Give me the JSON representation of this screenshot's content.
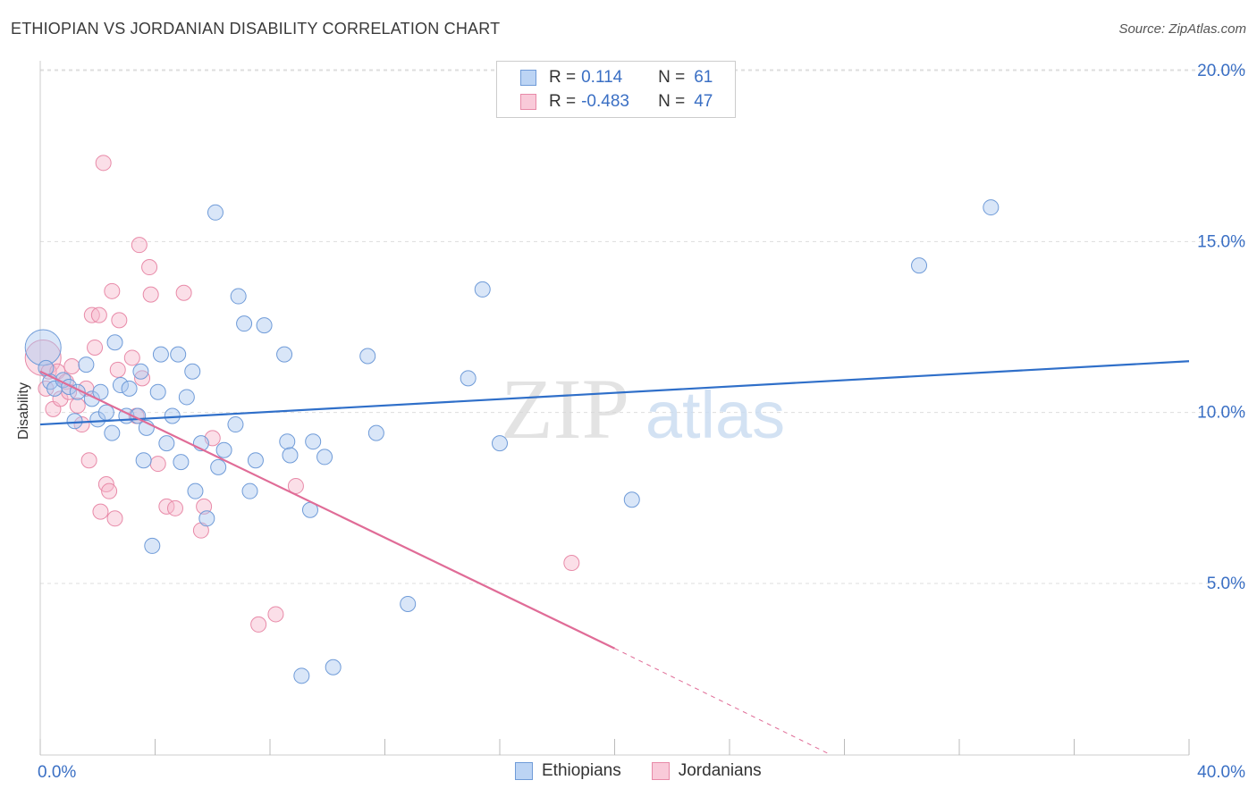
{
  "title": "ETHIOPIAN VS JORDANIAN DISABILITY CORRELATION CHART",
  "source": "Source: ZipAtlas.com",
  "watermark": {
    "part1": "ZIP",
    "part2": "atlas"
  },
  "legend": {
    "r_label": "R =",
    "n_label": "N =",
    "rows": [
      {
        "name": "Ethiopians",
        "r": "0.114",
        "n": "61"
      },
      {
        "name": "Jordanians",
        "r": "-0.483",
        "n": "47"
      }
    ]
  },
  "colors": {
    "ethiopians_fill": "#aac8f0",
    "ethiopians_stroke": "#6f9bd8",
    "ethiopians_line": "#2f6fc9",
    "jordanians_fill": "#f6b8cc",
    "jordanians_stroke": "#e88aa8",
    "jordanians_line": "#e06c97",
    "axis_text": "#3a6fc4"
  },
  "chart_data": {
    "type": "scatter",
    "title": "ETHIOPIAN VS JORDANIAN DISABILITY CORRELATION CHART",
    "xlabel": "",
    "ylabel": "Disability",
    "xlim": [
      0,
      40
    ],
    "ylim": [
      0,
      20.6
    ],
    "x_tick_labels": [
      "0.0%",
      "40.0%"
    ],
    "y_ticks": [
      5,
      10,
      15,
      20
    ],
    "y_tick_labels": [
      "5.0%",
      "10.0%",
      "15.0%",
      "20.0%"
    ],
    "series": [
      {
        "name": "Ethiopians",
        "trend": {
          "x": [
            0,
            40
          ],
          "y": [
            9.65,
            11.5
          ]
        },
        "points": [
          {
            "x": 0.1,
            "y": 11.9,
            "big": true
          },
          {
            "x": 0.2,
            "y": 11.3
          },
          {
            "x": 0.35,
            "y": 10.9
          },
          {
            "x": 0.5,
            "y": 10.7
          },
          {
            "x": 0.8,
            "y": 10.95
          },
          {
            "x": 1.0,
            "y": 10.75
          },
          {
            "x": 1.3,
            "y": 10.6
          },
          {
            "x": 1.6,
            "y": 11.4
          },
          {
            "x": 1.2,
            "y": 9.75
          },
          {
            "x": 1.8,
            "y": 10.4
          },
          {
            "x": 2.0,
            "y": 9.8
          },
          {
            "x": 2.1,
            "y": 10.6
          },
          {
            "x": 2.3,
            "y": 10.0
          },
          {
            "x": 2.5,
            "y": 9.4
          },
          {
            "x": 2.6,
            "y": 12.05
          },
          {
            "x": 2.8,
            "y": 10.8
          },
          {
            "x": 3.0,
            "y": 9.9
          },
          {
            "x": 3.1,
            "y": 10.7
          },
          {
            "x": 3.4,
            "y": 9.9
          },
          {
            "x": 3.5,
            "y": 11.2
          },
          {
            "x": 3.6,
            "y": 8.6
          },
          {
            "x": 3.7,
            "y": 9.55
          },
          {
            "x": 3.9,
            "y": 6.1
          },
          {
            "x": 4.1,
            "y": 10.6
          },
          {
            "x": 4.2,
            "y": 11.7
          },
          {
            "x": 4.4,
            "y": 9.1
          },
          {
            "x": 4.6,
            "y": 9.9
          },
          {
            "x": 4.8,
            "y": 11.7
          },
          {
            "x": 4.9,
            "y": 8.55
          },
          {
            "x": 5.1,
            "y": 10.45
          },
          {
            "x": 5.3,
            "y": 11.2
          },
          {
            "x": 5.4,
            "y": 7.7
          },
          {
            "x": 5.6,
            "y": 9.1
          },
          {
            "x": 5.8,
            "y": 6.9
          },
          {
            "x": 6.1,
            "y": 15.85
          },
          {
            "x": 6.2,
            "y": 8.4
          },
          {
            "x": 6.4,
            "y": 8.9
          },
          {
            "x": 6.8,
            "y": 9.65
          },
          {
            "x": 6.9,
            "y": 13.4
          },
          {
            "x": 7.1,
            "y": 12.6
          },
          {
            "x": 7.3,
            "y": 7.7
          },
          {
            "x": 7.5,
            "y": 8.6
          },
          {
            "x": 7.8,
            "y": 12.55
          },
          {
            "x": 8.5,
            "y": 11.7
          },
          {
            "x": 8.6,
            "y": 9.15
          },
          {
            "x": 8.7,
            "y": 8.75
          },
          {
            "x": 9.1,
            "y": 2.3
          },
          {
            "x": 9.4,
            "y": 7.15
          },
          {
            "x": 9.5,
            "y": 9.15
          },
          {
            "x": 9.9,
            "y": 8.7
          },
          {
            "x": 10.2,
            "y": 2.55
          },
          {
            "x": 11.4,
            "y": 11.65
          },
          {
            "x": 11.7,
            "y": 9.4
          },
          {
            "x": 12.8,
            "y": 4.4
          },
          {
            "x": 14.9,
            "y": 11.0
          },
          {
            "x": 15.4,
            "y": 13.6
          },
          {
            "x": 16.0,
            "y": 9.1
          },
          {
            "x": 20.6,
            "y": 7.45
          },
          {
            "x": 30.6,
            "y": 14.3
          },
          {
            "x": 33.1,
            "y": 16.0
          }
        ]
      },
      {
        "name": "Jordanians",
        "trend": {
          "x": [
            0,
            20
          ],
          "y": [
            11.2,
            3.1
          ]
        },
        "trend_dashed": {
          "x": [
            20,
            27.5
          ],
          "y": [
            3.1,
            0.0
          ]
        },
        "points": [
          {
            "x": 0.1,
            "y": 11.6,
            "big": true
          },
          {
            "x": 0.2,
            "y": 10.7
          },
          {
            "x": 0.3,
            "y": 11.2
          },
          {
            "x": 0.45,
            "y": 10.1
          },
          {
            "x": 0.6,
            "y": 11.2
          },
          {
            "x": 0.7,
            "y": 10.4
          },
          {
            "x": 0.9,
            "y": 10.9
          },
          {
            "x": 1.0,
            "y": 10.6
          },
          {
            "x": 1.1,
            "y": 11.35
          },
          {
            "x": 1.3,
            "y": 10.2
          },
          {
            "x": 1.45,
            "y": 9.65
          },
          {
            "x": 1.6,
            "y": 10.7
          },
          {
            "x": 1.7,
            "y": 8.6
          },
          {
            "x": 1.8,
            "y": 12.85
          },
          {
            "x": 1.9,
            "y": 11.9
          },
          {
            "x": 2.05,
            "y": 12.85
          },
          {
            "x": 2.1,
            "y": 7.1
          },
          {
            "x": 2.2,
            "y": 17.3
          },
          {
            "x": 2.3,
            "y": 7.9
          },
          {
            "x": 2.4,
            "y": 7.7
          },
          {
            "x": 2.5,
            "y": 13.55
          },
          {
            "x": 2.6,
            "y": 6.9
          },
          {
            "x": 2.7,
            "y": 11.25
          },
          {
            "x": 2.75,
            "y": 12.7
          },
          {
            "x": 3.2,
            "y": 11.6
          },
          {
            "x": 3.35,
            "y": 9.9
          },
          {
            "x": 3.45,
            "y": 14.9
          },
          {
            "x": 3.55,
            "y": 11.0
          },
          {
            "x": 3.8,
            "y": 14.25
          },
          {
            "x": 3.85,
            "y": 13.45
          },
          {
            "x": 4.1,
            "y": 8.5
          },
          {
            "x": 4.4,
            "y": 7.25
          },
          {
            "x": 4.7,
            "y": 7.2
          },
          {
            "x": 5.0,
            "y": 13.5
          },
          {
            "x": 5.6,
            "y": 6.55
          },
          {
            "x": 5.7,
            "y": 7.25
          },
          {
            "x": 6.0,
            "y": 9.25
          },
          {
            "x": 7.6,
            "y": 3.8
          },
          {
            "x": 8.2,
            "y": 4.1
          },
          {
            "x": 8.9,
            "y": 7.85
          },
          {
            "x": 18.5,
            "y": 5.6
          }
        ]
      }
    ]
  }
}
